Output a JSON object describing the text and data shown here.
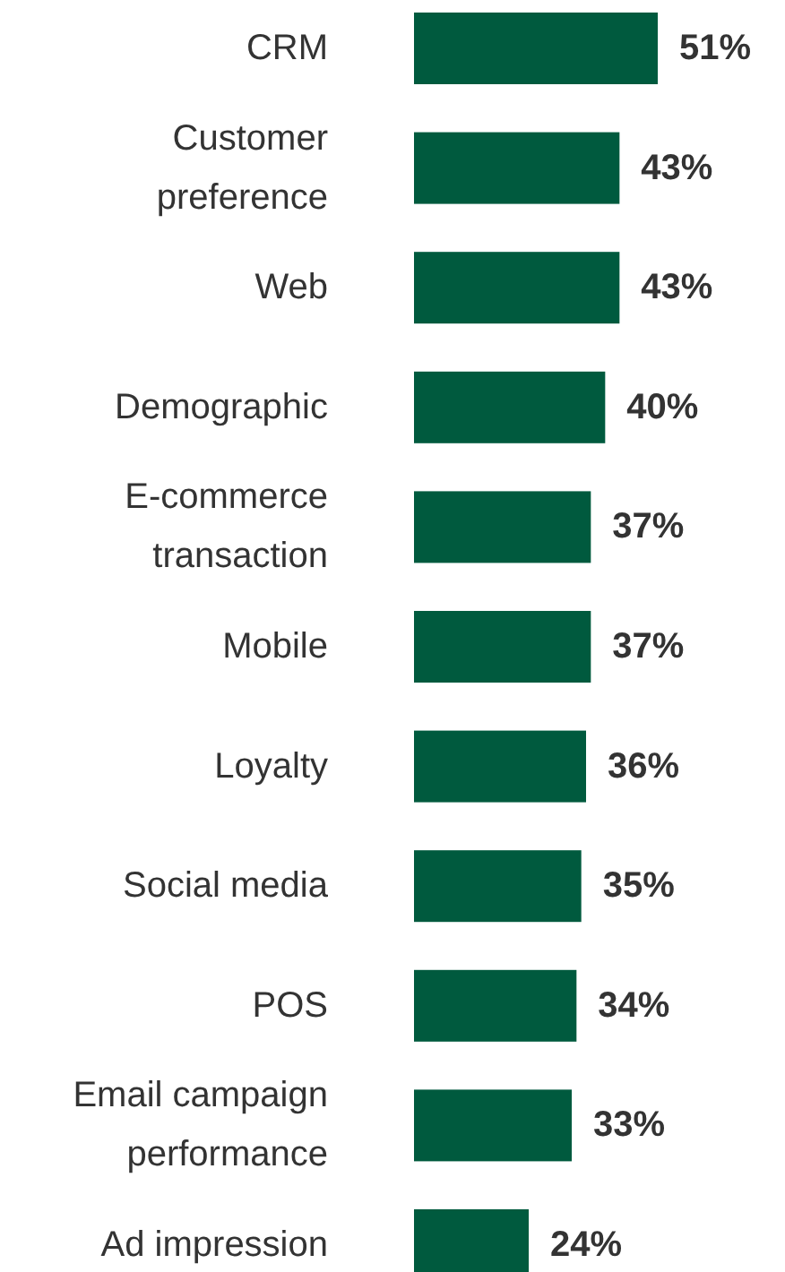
{
  "chart_data": {
    "type": "bar",
    "orientation": "horizontal",
    "categories": [
      "CRM",
      "Customer preference",
      "Web",
      "Demographic",
      "E-commerce transaction",
      "Mobile",
      "Loyalty",
      "Social media",
      "POS",
      "Email campaign performance",
      "Ad impression"
    ],
    "values": [
      51,
      43,
      43,
      40,
      37,
      37,
      36,
      35,
      34,
      33,
      24
    ],
    "value_labels": [
      "51%",
      "43%",
      "43%",
      "40%",
      "37%",
      "37%",
      "36%",
      "35%",
      "34%",
      "33%",
      "24%"
    ],
    "color": "#005a3e"
  }
}
